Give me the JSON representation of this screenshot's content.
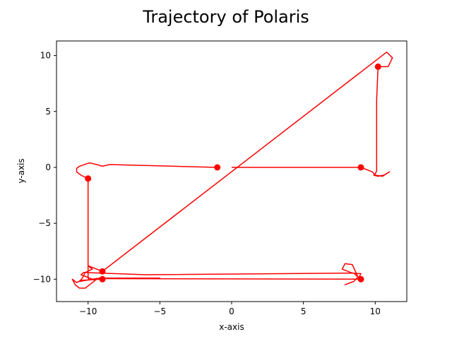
{
  "chart_data": {
    "type": "line",
    "title": "Trajectory of Polaris",
    "xlabel": "x-axis",
    "ylabel": "y-axis",
    "xlim": [
      -12.2,
      12.2
    ],
    "ylim": [
      -12,
      11.3
    ],
    "xticks": [
      -10,
      -5,
      0,
      5,
      10
    ],
    "yticks": [
      -10,
      -5,
      0,
      5,
      10
    ],
    "xtick_labels": [
      "−10",
      "−5",
      "0",
      "5",
      "10"
    ],
    "ytick_labels": [
      "−10",
      "−5",
      "0",
      "5",
      "10"
    ],
    "grid": false,
    "series": [
      {
        "color": "#ff0000",
        "line": [
          [
            0,
            0
          ],
          [
            9,
            0
          ],
          [
            9.8,
            -0.4
          ],
          [
            10,
            -0.7
          ],
          [
            10.5,
            -0.8
          ],
          [
            11,
            -0.4
          ],
          [
            10.6,
            -0.7
          ],
          [
            10.2,
            -0.8
          ],
          [
            9.9,
            -0.7
          ],
          [
            10,
            -0.6
          ],
          [
            10.1,
            -0.3
          ],
          [
            10.1,
            1
          ],
          [
            10.1,
            3
          ],
          [
            10.1,
            6
          ],
          [
            10.2,
            9
          ],
          [
            10.5,
            9
          ],
          [
            10.9,
            9
          ],
          [
            11.2,
            9.8
          ],
          [
            10.8,
            10.3
          ],
          [
            -9,
            -9.3
          ],
          [
            -10.0,
            -8.8
          ],
          [
            -9.7,
            -9.1
          ],
          [
            -10.2,
            -9.4
          ],
          [
            -10.4,
            -9.9
          ],
          [
            -10.6,
            -10.2
          ],
          [
            -9.2,
            -9.9
          ],
          [
            -5,
            -9.9
          ],
          [
            -9,
            -9.95
          ],
          [
            9,
            -10
          ]
        ],
        "line_b": [
          [
            -9,
            -10
          ],
          [
            -10.5,
            -10.1
          ],
          [
            -10.8,
            -10.3
          ],
          [
            -11.1,
            -10
          ],
          [
            -10.9,
            -10.5
          ],
          [
            -10.6,
            -10.8
          ],
          [
            -10.2,
            -10.8
          ],
          [
            -9.9,
            -10.5
          ],
          [
            -9.5,
            -10.1
          ],
          [
            -10.5,
            -9.6
          ],
          [
            -10.3,
            -9.4
          ],
          [
            -6,
            -9.6
          ],
          [
            8.5,
            -9.45
          ],
          [
            8.8,
            -9.8
          ],
          [
            8.5,
            -10.2
          ],
          [
            7.9,
            -10.5
          ],
          [
            8.5,
            -10.2
          ],
          [
            8.8,
            -9.8
          ],
          [
            8.4,
            -8.7
          ],
          [
            7.9,
            -8.6
          ],
          [
            7.7,
            -9.1
          ],
          [
            8.4,
            -9.45
          ],
          [
            9,
            -9.5
          ],
          [
            8.8,
            -10
          ]
        ],
        "line_c": [
          [
            -10,
            -1
          ],
          [
            -10,
            -6
          ],
          [
            -10,
            -9.9
          ],
          [
            -9.9,
            -10.1
          ]
        ],
        "line_d": [
          [
            -1,
            0
          ],
          [
            -4,
            0.1
          ],
          [
            -8.5,
            0.25
          ],
          [
            -9,
            0.1
          ],
          [
            -9.4,
            0.25
          ],
          [
            -9.9,
            0.4
          ],
          [
            -10.6,
            0.1
          ],
          [
            -10.8,
            -0.1
          ],
          [
            -10.8,
            -0.4
          ],
          [
            -10.5,
            -0.7
          ],
          [
            -10,
            -1
          ]
        ],
        "points": [
          [
            -1,
            0
          ],
          [
            9,
            0
          ],
          [
            10.2,
            9
          ],
          [
            -10,
            -1
          ],
          [
            -9,
            -9.3
          ],
          [
            -9,
            -10
          ],
          [
            9,
            -10
          ]
        ]
      }
    ]
  }
}
